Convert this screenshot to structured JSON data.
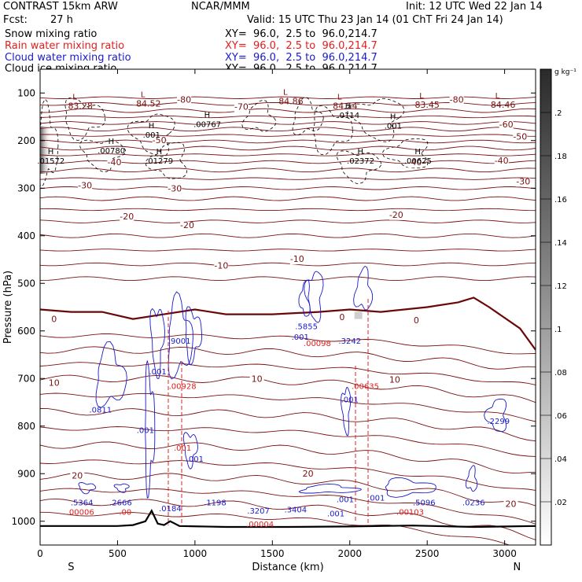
{
  "header": {
    "title": "CONTRAST 15km ARW",
    "source": "NCAR/MMM",
    "init": "Init: 12 UTC Wed 22 Jan 14",
    "fcst_label": "Fcst:",
    "fcst_value": "27 h",
    "valid": "Valid: 15 UTC Thu 23 Jan 14 (01 ChT Fri 24 Jan 14)"
  },
  "fields": [
    {
      "name": "Snow mixing ratio",
      "xy": "XY=  96.0,  2.5 to  96.0,214.7",
      "color": "#000000"
    },
    {
      "name": "Rain water mixing ratio",
      "xy": "XY=  96.0,  2.5 to  96.0,214.7",
      "color": "#e02020"
    },
    {
      "name": "Cloud water mixing ratio",
      "xy": "XY=  96.0,  2.5 to  96.0,214.7",
      "color": "#1a1acc"
    },
    {
      "name": "Cloud ice mixing ratio",
      "xy": "XY=  96.0,  2.5 to  96.0,214.7",
      "color": "#000000"
    }
  ],
  "chart_data": {
    "type": "cross-section",
    "xlabel": "Distance (km)",
    "ylabel": "Pressure (hPa)",
    "xlim": [
      0,
      3200
    ],
    "ylim": [
      1050,
      50
    ],
    "x_ticks": [
      0,
      500,
      1000,
      1500,
      2000,
      2500,
      3000
    ],
    "y_ticks": [
      100,
      200,
      300,
      400,
      500,
      600,
      700,
      800,
      900,
      1000
    ],
    "x_end_labels": {
      "left": "S",
      "right": "N"
    },
    "colorbar": {
      "unit": "g kg⁻¹",
      "ticks": [
        ".02",
        ".04",
        ".06",
        ".08",
        ".1",
        ".12",
        ".14",
        ".16",
        ".18",
        ".2"
      ],
      "levels": [
        0.02,
        0.04,
        0.06,
        0.08,
        0.1,
        0.12,
        0.14,
        0.16,
        0.18,
        0.2
      ]
    },
    "temperature_contour_labels": [
      {
        "text": "-80",
        "x": 930,
        "p": 120
      },
      {
        "text": "-80",
        "x": 2690,
        "p": 120
      },
      {
        "text": "-70",
        "x": 1300,
        "p": 135
      },
      {
        "text": "-60",
        "x": 3010,
        "p": 172
      },
      {
        "text": "-50",
        "x": 770,
        "p": 205
      },
      {
        "text": "-50",
        "x": 3100,
        "p": 198
      },
      {
        "text": "-40",
        "x": 480,
        "p": 252
      },
      {
        "text": "-40",
        "x": 2420,
        "p": 252
      },
      {
        "text": "-40",
        "x": 2980,
        "p": 248
      },
      {
        "text": "-30",
        "x": 290,
        "p": 300
      },
      {
        "text": "-30",
        "x": 870,
        "p": 307
      },
      {
        "text": "-30",
        "x": 3120,
        "p": 292
      },
      {
        "text": "-20",
        "x": 560,
        "p": 366
      },
      {
        "text": "-20",
        "x": 950,
        "p": 384
      },
      {
        "text": "-20",
        "x": 2300,
        "p": 362
      },
      {
        "text": "-10",
        "x": 1170,
        "p": 469
      },
      {
        "text": "-10",
        "x": 1660,
        "p": 455
      },
      {
        "text": "0",
        "x": 90,
        "p": 581
      },
      {
        "text": "0",
        "x": 1950,
        "p": 577
      },
      {
        "text": "0",
        "x": 2430,
        "p": 584
      },
      {
        "text": "10",
        "x": 90,
        "p": 715
      },
      {
        "text": "10",
        "x": 1400,
        "p": 707
      },
      {
        "text": "10",
        "x": 2290,
        "p": 709
      },
      {
        "text": "20",
        "x": 240,
        "p": 910
      },
      {
        "text": "20",
        "x": 1730,
        "p": 906
      },
      {
        "text": "20",
        "x": 3040,
        "p": 970
      }
    ],
    "snow_maxima": [
      {
        "value": "84.52",
        "x": 700,
        "p": 115
      },
      {
        "value": "84.86",
        "x": 1620,
        "p": 110
      },
      {
        "value": "84.54",
        "x": 1970,
        "p": 120
      },
      {
        "value": "83.45",
        "x": 2500,
        "p": 118
      },
      {
        "value": "84.46",
        "x": 2990,
        "p": 118
      },
      {
        "value": "83.28",
        "x": 260,
        "p": 120
      }
    ],
    "ice_maxima": [
      {
        "value": ".00767",
        "x": 1080,
        "p": 165
      },
      {
        "value": ".0114",
        "x": 1990,
        "p": 146
      },
      {
        "value": ".001",
        "x": 2280,
        "p": 168
      },
      {
        "value": ".001",
        "x": 720,
        "p": 187
      },
      {
        "value": ".00780",
        "x": 460,
        "p": 220
      },
      {
        "value": ".01572",
        "x": 70,
        "p": 242
      },
      {
        "value": ".01279",
        "x": 770,
        "p": 242
      },
      {
        "value": ".02372",
        "x": 2070,
        "p": 242
      },
      {
        "value": ".00625",
        "x": 2440,
        "p": 242
      }
    ],
    "cloud_water_maxima": [
      {
        "value": ".9001",
        "x": 900,
        "p": 620
      },
      {
        "value": ".5855",
        "x": 1720,
        "p": 590
      },
      {
        "value": ".3242",
        "x": 2000,
        "p": 620
      },
      {
        "value": ".001",
        "x": 1680,
        "p": 612
      },
      {
        "value": ".001",
        "x": 760,
        "p": 685
      },
      {
        "value": ".0811",
        "x": 390,
        "p": 765
      },
      {
        "value": ".001",
        "x": 2000,
        "p": 743
      },
      {
        "value": ".001",
        "x": 680,
        "p": 808
      },
      {
        "value": ".001",
        "x": 1000,
        "p": 868
      },
      {
        "value": ".2299",
        "x": 2960,
        "p": 789
      },
      {
        "value": ".5364",
        "x": 270,
        "p": 960
      },
      {
        "value": ".2666",
        "x": 520,
        "p": 960
      },
      {
        "value": ".0184",
        "x": 840,
        "p": 972
      },
      {
        "value": ".1198",
        "x": 1130,
        "p": 960
      },
      {
        "value": ".3207",
        "x": 1410,
        "p": 977
      },
      {
        "value": ".3404",
        "x": 1650,
        "p": 975
      },
      {
        "value": ".001",
        "x": 1970,
        "p": 953
      },
      {
        "value": ".001",
        "x": 1910,
        "p": 983
      },
      {
        "value": ".001",
        "x": 2170,
        "p": 950
      },
      {
        "value": ".5096",
        "x": 2480,
        "p": 960
      },
      {
        "value": ".0236",
        "x": 2800,
        "p": 960
      }
    ],
    "rain_maxima": [
      {
        "value": ".00098",
        "x": 1790,
        "p": 625
      },
      {
        "value": ".00928",
        "x": 920,
        "p": 715
      },
      {
        "value": ".00635",
        "x": 2100,
        "p": 715
      },
      {
        "value": ".001",
        "x": 920,
        "p": 845
      },
      {
        "value": ".00006",
        "x": 260,
        "p": 980
      },
      {
        "value": ".00",
        "x": 550,
        "p": 980
      },
      {
        "value": ".00004",
        "x": 1420,
        "p": 1005
      },
      {
        "value": ".00103",
        "x": 2390,
        "p": 980
      }
    ],
    "freezing_level": {
      "x": [
        0,
        200,
        400,
        600,
        800,
        1000,
        1200,
        1500,
        1800,
        2000,
        2200,
        2500,
        2700,
        2800,
        2900,
        3100,
        3200
      ],
      "p": [
        555,
        560,
        560,
        575,
        565,
        555,
        565,
        565,
        560,
        555,
        560,
        550,
        540,
        530,
        550,
        595,
        640
      ]
    },
    "terrain": {
      "x": [
        0,
        500,
        600,
        680,
        720,
        760,
        800,
        840,
        900,
        1200,
        1600,
        2000,
        2400,
        2800,
        3200
      ],
      "p": [
        1010,
        1010,
        1008,
        1000,
        978,
        1005,
        1008,
        1000,
        1010,
        1012,
        1012,
        1011,
        1009,
        1012,
        1010
      ]
    }
  }
}
